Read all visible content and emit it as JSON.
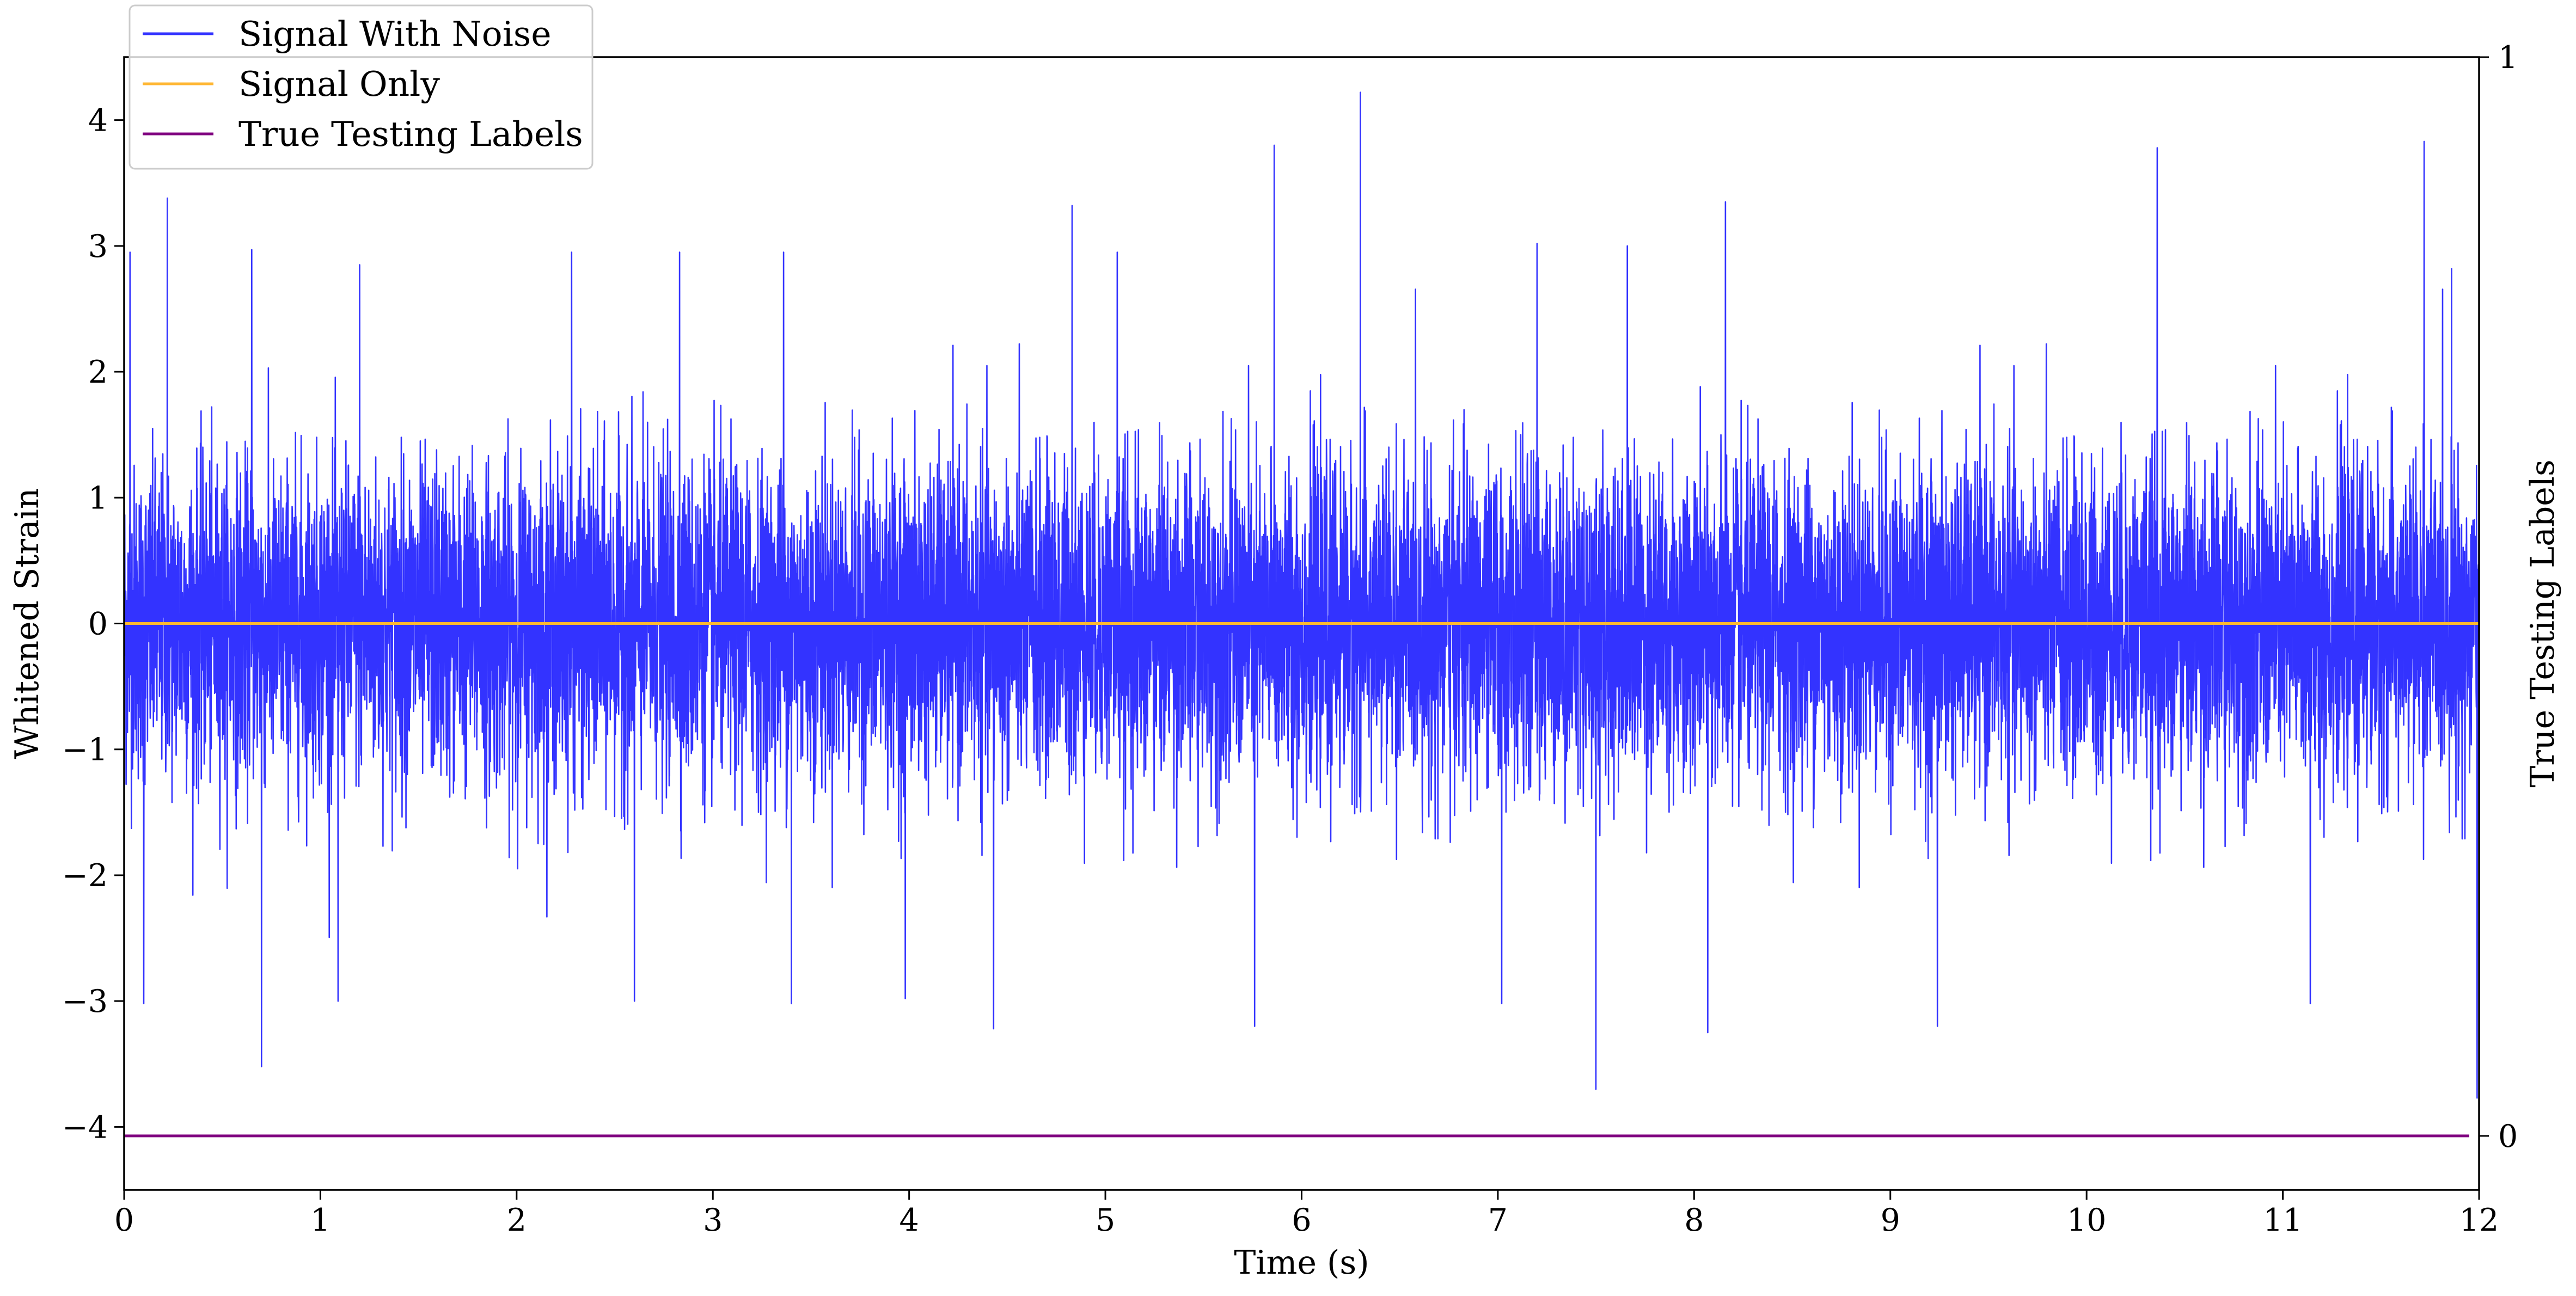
{
  "chart_data": {
    "type": "line",
    "xlabel": "Time (s)",
    "ylabel": "Whitened Strain",
    "y2label": "True Testing Labels",
    "xlim": [
      0,
      12
    ],
    "ylim": [
      -4.5,
      4.5
    ],
    "y2lim": [
      -0.05,
      1.0
    ],
    "xticks": [
      0,
      1,
      2,
      3,
      4,
      5,
      6,
      7,
      8,
      9,
      10,
      11,
      12
    ],
    "yticks": [
      -4,
      -3,
      -2,
      -1,
      0,
      1,
      2,
      3,
      4
    ],
    "y2ticks": [
      0,
      1
    ],
    "grid": false,
    "legend_position": "top-left",
    "legend": [
      "Signal With Noise",
      "Signal Only",
      "True Testing Labels"
    ],
    "series": [
      {
        "name": "Signal With Noise",
        "axis": "left",
        "color": "#3333ff",
        "description_stats": {
          "mean": 0.0,
          "std": 0.62
        },
        "peaks": [
          {
            "x": 0.22,
            "y": 3.38
          },
          {
            "x": 0.03,
            "y": 2.95
          },
          {
            "x": 0.65,
            "y": 2.97
          },
          {
            "x": 1.2,
            "y": 2.85
          },
          {
            "x": 2.28,
            "y": 2.95
          },
          {
            "x": 2.83,
            "y": 2.95
          },
          {
            "x": 3.36,
            "y": 2.95
          },
          {
            "x": 4.83,
            "y": 3.32
          },
          {
            "x": 5.06,
            "y": 2.95
          },
          {
            "x": 5.86,
            "y": 3.8
          },
          {
            "x": 6.3,
            "y": 4.22
          },
          {
            "x": 7.2,
            "y": 3.02
          },
          {
            "x": 7.66,
            "y": 3.0
          },
          {
            "x": 8.16,
            "y": 3.35
          },
          {
            "x": 10.36,
            "y": 3.78
          },
          {
            "x": 11.72,
            "y": 3.83
          },
          {
            "x": 11.86,
            "y": 2.82
          }
        ],
        "troughs": [
          {
            "x": 0.1,
            "y": -3.02
          },
          {
            "x": 0.7,
            "y": -3.52
          },
          {
            "x": 1.09,
            "y": -3.0
          },
          {
            "x": 2.6,
            "y": -3.0
          },
          {
            "x": 3.4,
            "y": -3.02
          },
          {
            "x": 3.98,
            "y": -2.98
          },
          {
            "x": 4.43,
            "y": -3.22
          },
          {
            "x": 5.76,
            "y": -3.2
          },
          {
            "x": 7.02,
            "y": -3.02
          },
          {
            "x": 7.5,
            "y": -3.7
          },
          {
            "x": 8.07,
            "y": -3.25
          },
          {
            "x": 9.24,
            "y": -3.2
          },
          {
            "x": 11.14,
            "y": -3.02
          },
          {
            "x": 11.99,
            "y": -3.77
          }
        ]
      },
      {
        "name": "Signal Only",
        "axis": "left",
        "color": "#ffb733",
        "x": [
          0,
          12
        ],
        "y": [
          0,
          0
        ]
      },
      {
        "name": "True Testing Labels",
        "axis": "right",
        "color": "#800080",
        "x": [
          0,
          11.95
        ],
        "y": [
          0,
          0
        ]
      }
    ]
  }
}
